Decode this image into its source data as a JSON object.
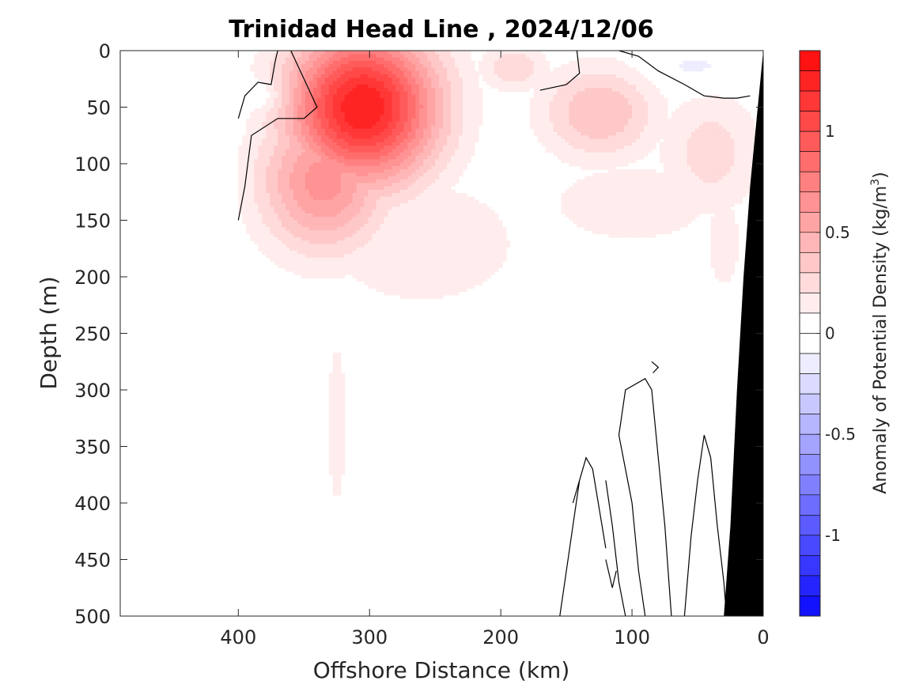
{
  "chart_data": {
    "type": "heatmap",
    "title": "Trinidad Head Line , 2024/12/06",
    "xlabel": "Offshore Distance (km)",
    "ylabel": "Depth (m)",
    "xlim": [
      490,
      0
    ],
    "ylim": [
      0,
      500
    ],
    "x_reversed": true,
    "y_reversed": true,
    "xticks": [
      400,
      300,
      200,
      100,
      0
    ],
    "xtick_labels": [
      "400",
      "300",
      "200",
      "100",
      "0"
    ],
    "yticks": [
      0,
      50,
      100,
      150,
      200,
      250,
      300,
      350,
      400,
      450,
      500
    ],
    "ytick_labels": [
      "0",
      "50",
      "100",
      "150",
      "200",
      "250",
      "300",
      "350",
      "400",
      "450",
      "500"
    ],
    "colorbar": {
      "label": "Anomaly of Potential Density (kg/m",
      "label_superscript": "3",
      "label_suffix": ")",
      "range": [
        -1.4,
        1.4
      ],
      "step": 0.1,
      "ticks": [
        1,
        0.5,
        0,
        -0.5,
        -1
      ],
      "tick_labels": [
        "1",
        "0.5",
        "0",
        "-0.5",
        "-1"
      ],
      "positive_color": "#ff0000",
      "negative_color": "#0000ff",
      "zero_color": "#ffffff"
    },
    "anomaly_features": [
      {
        "kind": "max",
        "x_km": 305,
        "depth_m": 50,
        "value": 1.3,
        "sigma_x": 40,
        "sigma_d": 48
      },
      {
        "kind": "max",
        "x_km": 335,
        "depth_m": 115,
        "value": 0.65,
        "sigma_x": 35,
        "sigma_d": 45
      },
      {
        "kind": "max",
        "x_km": 125,
        "depth_m": 55,
        "value": 0.4,
        "sigma_x": 32,
        "sigma_d": 30
      },
      {
        "kind": "max",
        "x_km": 190,
        "depth_m": 15,
        "value": 0.3,
        "sigma_x": 18,
        "sigma_d": 15
      },
      {
        "kind": "max",
        "x_km": 40,
        "depth_m": 90,
        "value": 0.25,
        "sigma_x": 28,
        "sigma_d": 40
      },
      {
        "kind": "max",
        "x_km": 260,
        "depth_m": 170,
        "value": 0.14,
        "sigma_x": 80,
        "sigma_d": 60
      },
      {
        "kind": "max",
        "x_km": 325,
        "depth_m": 330,
        "value": 0.12,
        "sigma_x": 10,
        "sigma_d": 110
      },
      {
        "kind": "max",
        "x_km": 100,
        "depth_m": 135,
        "value": 0.12,
        "sigma_x": 90,
        "sigma_d": 50
      },
      {
        "kind": "max",
        "x_km": 30,
        "depth_m": 170,
        "value": 0.11,
        "sigma_x": 25,
        "sigma_d": 80
      },
      {
        "kind": "min",
        "x_km": 380,
        "depth_m": 40,
        "value": -0.15,
        "sigma_x": 15,
        "sigma_d": 10
      },
      {
        "kind": "min",
        "x_km": 50,
        "depth_m": 15,
        "value": -0.15,
        "sigma_x": 25,
        "sigma_d": 12
      }
    ],
    "zero_contours": [
      [
        [
          400,
          60
        ],
        [
          395,
          40
        ],
        [
          385,
          28
        ],
        [
          375,
          30
        ],
        [
          372,
          10
        ],
        [
          370,
          0
        ]
      ],
      [
        [
          400,
          150
        ],
        [
          395,
          120
        ],
        [
          390,
          75
        ],
        [
          370,
          60
        ],
        [
          350,
          60
        ],
        [
          340,
          50
        ],
        [
          352,
          20
        ],
        [
          360,
          0
        ]
      ],
      [
        [
          170,
          35
        ],
        [
          150,
          30
        ],
        [
          140,
          20
        ],
        [
          142,
          0
        ]
      ],
      [
        [
          110,
          0
        ],
        [
          95,
          5
        ],
        [
          80,
          18
        ],
        [
          60,
          30
        ],
        [
          45,
          40
        ],
        [
          30,
          42
        ],
        [
          20,
          42
        ],
        [
          10,
          40
        ]
      ],
      [
        [
          120,
          380
        ],
        [
          115,
          420
        ],
        [
          110,
          470
        ],
        [
          105,
          500
        ]
      ],
      [
        [
          145,
          400
        ],
        [
          140,
          380
        ],
        [
          135,
          360
        ],
        [
          130,
          370
        ],
        [
          120,
          440
        ]
      ],
      [
        [
          155,
          500
        ],
        [
          150,
          460
        ],
        [
          145,
          420
        ],
        [
          140,
          380
        ]
      ],
      [
        [
          90,
          500
        ],
        [
          95,
          460
        ],
        [
          100,
          400
        ],
        [
          110,
          340
        ],
        [
          105,
          300
        ],
        [
          90,
          290
        ],
        [
          85,
          300
        ],
        [
          80,
          360
        ],
        [
          75,
          420
        ],
        [
          70,
          500
        ]
      ],
      [
        [
          60,
          500
        ],
        [
          55,
          430
        ],
        [
          50,
          380
        ],
        [
          45,
          340
        ],
        [
          40,
          360
        ],
        [
          35,
          420
        ],
        [
          30,
          470
        ],
        [
          28,
          500
        ]
      ],
      [
        [
          120,
          450
        ],
        [
          118,
          460
        ],
        [
          115,
          475
        ],
        [
          112,
          460
        ]
      ],
      [
        [
          85,
          275
        ],
        [
          80,
          280
        ],
        [
          84,
          285
        ]
      ]
    ],
    "seafloor_profile": [
      [
        0,
        0
      ],
      [
        5,
        60
      ],
      [
        10,
        120
      ],
      [
        15,
        200
      ],
      [
        20,
        300
      ],
      [
        25,
        420
      ],
      [
        30,
        500
      ]
    ],
    "seafloor_color": "#000000"
  }
}
